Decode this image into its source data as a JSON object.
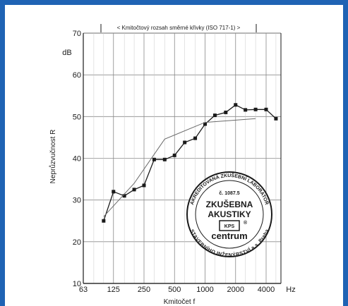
{
  "chart_data": {
    "type": "line",
    "title": "< Kmitočtový rozsah směrné křivky (ISO 717-1) >",
    "xlabel": "Kmitočet  f",
    "ylabel": "Neprůzvučnost  R",
    "y_unit": "dB",
    "x_unit": "Hz",
    "x_scale": "log",
    "ylim": [
      10,
      70
    ],
    "yticks": [
      10,
      20,
      30,
      40,
      50,
      60,
      70
    ],
    "xtick_labels": [
      "63",
      "125",
      "250",
      "500",
      "1000",
      "2000",
      "4000"
    ],
    "grid": true,
    "series": [
      {
        "style": "measured",
        "x": [
          100,
          125,
          160,
          200,
          250,
          315,
          400,
          500,
          630,
          800,
          1000,
          1250,
          1600,
          2000,
          2500,
          3150,
          4000,
          5000
        ],
        "values": [
          25,
          32,
          31,
          32.5,
          33.5,
          39.7,
          39.7,
          40.7,
          43.8,
          44.8,
          48.2,
          50.3,
          51,
          52.8,
          51.6,
          51.7,
          51.7,
          49.5
        ]
      },
      {
        "style": "reference",
        "x": [
          100,
          200,
          400,
          1000,
          3150
        ],
        "values": [
          26,
          34,
          44.6,
          48.6,
          49.5
        ]
      }
    ]
  },
  "stamp": {
    "arc_top": "AKREDITOVANÁ ZKUŠEBNÍ LABORATOŘ",
    "number": "č. 1087.5",
    "line1": "ZKUŠEBNA",
    "line2": "AKUSTIKY",
    "logo": "KPS",
    "brand": "centrum",
    "arc_bottom": "STAVEBNÍHO INŽENÝRSTVÍ a.s. Praha"
  },
  "colors": {
    "frame": "#1f63b4",
    "grid": "#8a8a8a",
    "measured": "#1a1a1a",
    "reference": "#6a6a6a"
  }
}
